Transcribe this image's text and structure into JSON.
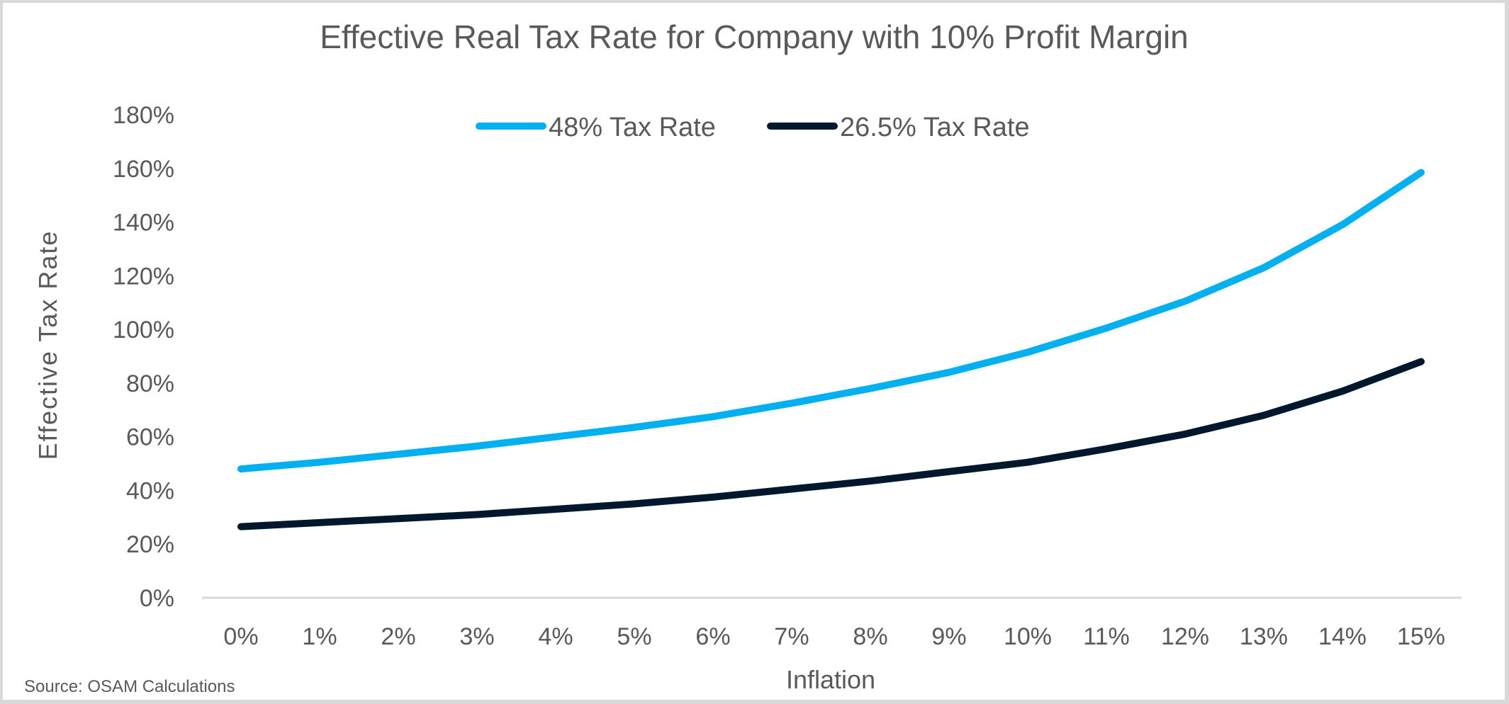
{
  "chart_data": {
    "type": "line",
    "title": "Effective Real Tax Rate for Company with 10% Profit Margin",
    "xlabel": "Inflation",
    "ylabel": "Effective Tax Rate",
    "source": "Source: OSAM Calculations",
    "x": [
      "0%",
      "1%",
      "2%",
      "3%",
      "4%",
      "5%",
      "6%",
      "7%",
      "8%",
      "9%",
      "10%",
      "11%",
      "12%",
      "13%",
      "14%",
      "15%"
    ],
    "y_ticks": [
      "0%",
      "20%",
      "40%",
      "60%",
      "80%",
      "100%",
      "120%",
      "140%",
      "160%",
      "180%"
    ],
    "ylim": [
      0,
      180
    ],
    "y_unit": "percent",
    "grid": false,
    "legend_position": "top-center",
    "series": [
      {
        "name": "48% Tax Rate",
        "color": "#00B0F0",
        "values": [
          48,
          50.5,
          53.5,
          56.5,
          60,
          63.5,
          67.5,
          72.5,
          78,
          84,
          91.5,
          100.5,
          110.5,
          123,
          139,
          158.5
        ]
      },
      {
        "name": "26.5% Tax Rate",
        "color": "#00172D",
        "values": [
          26.5,
          28,
          29.5,
          31,
          33,
          35,
          37.5,
          40.5,
          43.5,
          47,
          50.5,
          55.5,
          61,
          68,
          77,
          88
        ]
      }
    ]
  }
}
